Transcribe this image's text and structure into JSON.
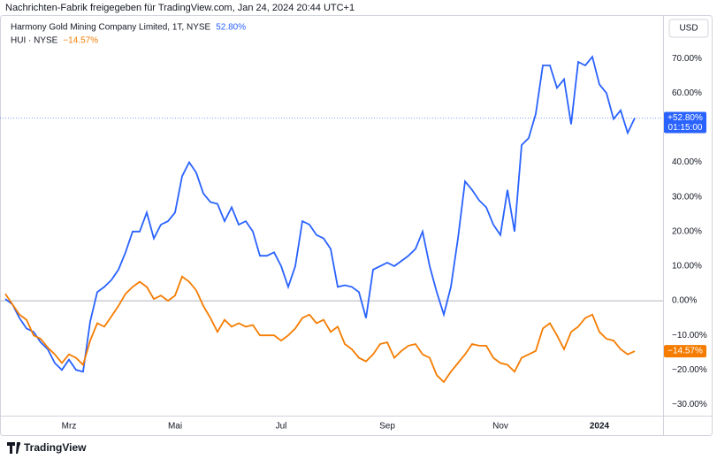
{
  "chart_data": {
    "type": "line",
    "title": "Nachrichten-Fabrik freigegeben für TradingView.com, Jan 24, 2024 20:44 UTC+1",
    "currency": "USD",
    "footer": "TradingView",
    "categories": [
      null,
      null,
      null,
      null,
      null,
      null,
      null,
      null,
      null,
      "Mrz",
      null,
      null,
      null,
      null,
      null,
      null,
      null,
      null,
      null,
      null,
      null,
      null,
      null,
      null,
      "Mai",
      null,
      null,
      null,
      null,
      null,
      null,
      null,
      null,
      null,
      null,
      null,
      null,
      null,
      null,
      "Jul",
      null,
      null,
      null,
      null,
      null,
      null,
      null,
      null,
      null,
      null,
      null,
      null,
      null,
      null,
      "Sep",
      null,
      null,
      null,
      null,
      null,
      null,
      null,
      null,
      null,
      null,
      null,
      null,
      null,
      null,
      null,
      "Nov",
      null,
      null,
      null,
      null,
      null,
      null,
      null,
      null,
      null,
      null,
      null,
      null,
      null,
      "2024",
      null,
      null,
      null,
      null,
      null
    ],
    "series": [
      {
        "name": "Harmony Gold Mining Company Limited, 1T, NYSE",
        "legend_value": "52.80%",
        "badge": "+52.80%",
        "badge_sub": "01:15:00",
        "color": "#2962ff",
        "values": [
          0.5,
          -1,
          -5,
          -8,
          -9,
          -12,
          -14,
          -18,
          -20,
          -17,
          -20,
          -20.5,
          -6,
          2.5,
          4,
          6,
          9,
          14,
          20,
          20,
          25.5,
          18,
          22,
          23,
          25.5,
          36,
          40,
          37,
          31,
          28.5,
          28,
          23,
          27,
          22,
          23,
          20,
          13,
          13,
          14,
          10,
          4,
          10,
          23,
          22,
          19,
          18,
          15,
          4,
          4.5,
          4,
          2.5,
          -5,
          9,
          10,
          11,
          10,
          11.5,
          13,
          15,
          20,
          10,
          2.5,
          -4,
          4,
          18,
          34.5,
          32,
          29,
          27,
          22,
          19,
          32,
          20,
          45,
          47,
          54,
          68,
          68,
          61.5,
          64,
          51,
          69,
          68,
          70.5,
          62.5,
          60,
          52.5,
          55,
          48.5,
          52.8
        ]
      },
      {
        "name": "HUI · NYSE",
        "legend_value": "−14.57%",
        "badge": "−14.57%",
        "color": "#f57c00",
        "values": [
          2,
          -1,
          -4,
          -5.5,
          -10,
          -11,
          -13.5,
          -15.5,
          -18,
          -15.5,
          -16.5,
          -18.5,
          -11.5,
          -6.5,
          -7.5,
          -4.5,
          -1.5,
          2,
          4,
          5.5,
          4,
          0.5,
          1.5,
          0,
          1.5,
          7,
          5.5,
          3,
          -1.5,
          -5,
          -9,
          -5.5,
          -7.5,
          -6.5,
          -7.5,
          -7,
          -10,
          -10,
          -10,
          -11.5,
          -10,
          -8,
          -5,
          -4,
          -6.5,
          -5.5,
          -9,
          -7.5,
          -12.5,
          -14,
          -16.5,
          -17.5,
          -15.5,
          -12.5,
          -12,
          -16.5,
          -14.5,
          -13,
          -12.5,
          -15.5,
          -16.5,
          -21.5,
          -23.5,
          -20.5,
          -18,
          -15.5,
          -12.5,
          -13,
          -13,
          -16.5,
          -18,
          -18.5,
          -20.5,
          -16.5,
          -15.5,
          -14.5,
          -8,
          -6.5,
          -10,
          -14,
          -9,
          -7.5,
          -5,
          -4,
          -9,
          -11,
          -11.5,
          -14,
          -15.5,
          -14.57
        ]
      }
    ],
    "ylim": [
      -33.2,
      82.3
    ],
    "yticks": [
      {
        "value": 70,
        "label": "70.00%"
      },
      {
        "value": 60,
        "label": "60.00%"
      },
      {
        "value": 40,
        "label": "40.00%"
      },
      {
        "value": 30,
        "label": "30.00%"
      },
      {
        "value": 20,
        "label": "20.00%"
      },
      {
        "value": 10,
        "label": "10.00%"
      },
      {
        "value": 0,
        "label": "0.00%"
      },
      {
        "value": -10,
        "label": "−10.00%"
      },
      {
        "value": -20,
        "label": "−20.00%"
      },
      {
        "value": -30,
        "label": "−30.00%"
      }
    ],
    "grid": false
  }
}
